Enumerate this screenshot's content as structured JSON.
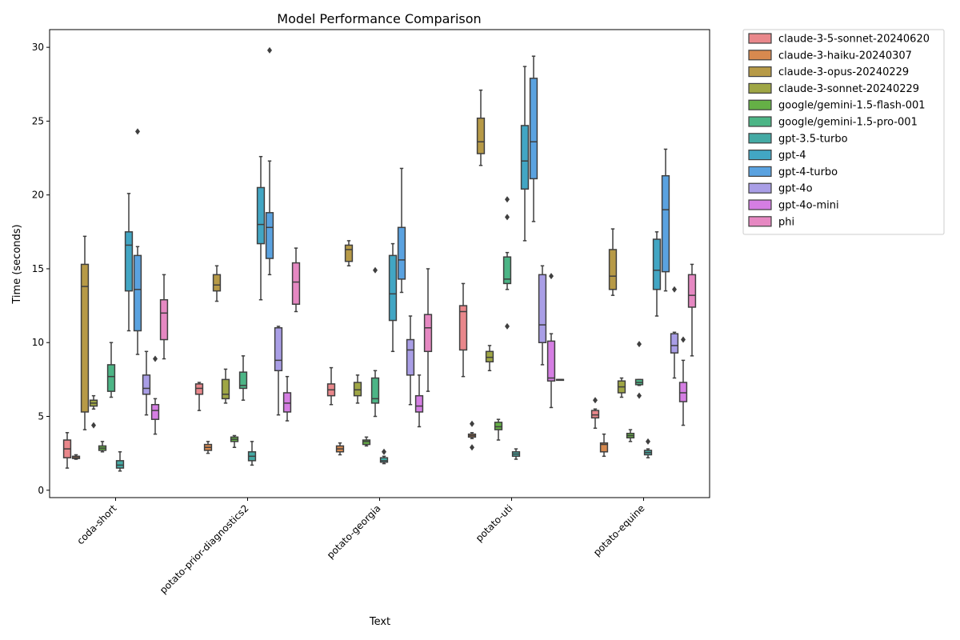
{
  "chart_data": {
    "type": "box",
    "title": "Model Performance Comparison",
    "xlabel": "Text",
    "ylabel": "Time (seconds)",
    "ylim": [
      -0.5,
      31.2
    ],
    "yticks": [
      0,
      5,
      10,
      15,
      20,
      25,
      30
    ],
    "grid": false,
    "legend_position": "outside-right",
    "categories": [
      "coda-short",
      "potato-prior-diagnostics2",
      "potato-georgia",
      "potato-uti",
      "potato-equine"
    ],
    "series": [
      {
        "name": "claude-3-5-sonnet-20240620",
        "color": "#e9878b",
        "boxes": [
          {
            "lo": 1.5,
            "q1": 2.2,
            "med": 2.8,
            "q3": 3.4,
            "hi": 3.9,
            "out": []
          },
          {
            "lo": 5.4,
            "q1": 6.5,
            "med": 6.9,
            "q3": 7.2,
            "hi": 7.3,
            "out": []
          },
          {
            "lo": 5.8,
            "q1": 6.4,
            "med": 6.8,
            "q3": 7.2,
            "hi": 8.3,
            "out": []
          },
          {
            "lo": 7.7,
            "q1": 9.5,
            "med": 12.1,
            "q3": 12.5,
            "hi": 14.0,
            "out": []
          },
          {
            "lo": 4.2,
            "q1": 4.9,
            "med": 5.1,
            "q3": 5.4,
            "hi": 5.5,
            "out": [
              6.1
            ]
          }
        ]
      },
      {
        "name": "claude-3-haiku-20240307",
        "color": "#d7894f",
        "boxes": [
          {
            "lo": 2.1,
            "q1": 2.15,
            "med": 2.2,
            "q3": 2.3,
            "hi": 2.4,
            "out": []
          },
          {
            "lo": 2.5,
            "q1": 2.7,
            "med": 2.9,
            "q3": 3.1,
            "hi": 3.3,
            "out": []
          },
          {
            "lo": 2.4,
            "q1": 2.6,
            "med": 2.8,
            "q3": 3.0,
            "hi": 3.2,
            "out": []
          },
          {
            "lo": 3.5,
            "q1": 3.6,
            "med": 3.7,
            "q3": 3.8,
            "hi": 3.9,
            "out": [
              4.5,
              2.9
            ]
          },
          {
            "lo": 2.3,
            "q1": 2.6,
            "med": 3.1,
            "q3": 3.2,
            "hi": 3.8,
            "out": []
          }
        ]
      },
      {
        "name": "claude-3-opus-20240229",
        "color": "#b79a47",
        "boxes": [
          {
            "lo": 4.1,
            "q1": 5.3,
            "med": 13.8,
            "q3": 15.3,
            "hi": 17.2,
            "out": []
          },
          {
            "lo": 12.8,
            "q1": 13.5,
            "med": 13.9,
            "q3": 14.6,
            "hi": 15.2,
            "out": []
          },
          {
            "lo": 15.2,
            "q1": 15.5,
            "med": 16.3,
            "q3": 16.6,
            "hi": 16.9,
            "out": []
          },
          {
            "lo": 22.0,
            "q1": 22.8,
            "med": 23.6,
            "q3": 25.2,
            "hi": 27.1,
            "out": []
          },
          {
            "lo": 13.2,
            "q1": 13.6,
            "med": 14.5,
            "q3": 16.3,
            "hi": 17.7,
            "out": []
          }
        ]
      },
      {
        "name": "claude-3-sonnet-20240229",
        "color": "#9fa645",
        "boxes": [
          {
            "lo": 5.5,
            "q1": 5.7,
            "med": 5.9,
            "q3": 6.1,
            "hi": 6.4,
            "out": [
              4.4
            ]
          },
          {
            "lo": 5.9,
            "q1": 6.2,
            "med": 6.5,
            "q3": 7.5,
            "hi": 8.2,
            "out": []
          },
          {
            "lo": 5.9,
            "q1": 6.4,
            "med": 6.8,
            "q3": 7.3,
            "hi": 7.8,
            "out": []
          },
          {
            "lo": 8.1,
            "q1": 8.7,
            "med": 9.0,
            "q3": 9.4,
            "hi": 9.8,
            "out": []
          },
          {
            "lo": 6.3,
            "q1": 6.6,
            "med": 7.0,
            "q3": 7.4,
            "hi": 7.6,
            "out": []
          }
        ]
      },
      {
        "name": "google/gemini-1.5-flash-001",
        "color": "#65b046",
        "boxes": [
          {
            "lo": 2.6,
            "q1": 2.7,
            "med": 2.85,
            "q3": 3.0,
            "hi": 3.3,
            "out": []
          },
          {
            "lo": 2.9,
            "q1": 3.3,
            "med": 3.45,
            "q3": 3.6,
            "hi": 3.7,
            "out": []
          },
          {
            "lo": 3.0,
            "q1": 3.1,
            "med": 3.3,
            "q3": 3.4,
            "hi": 3.6,
            "out": []
          },
          {
            "lo": 3.4,
            "q1": 4.1,
            "med": 4.3,
            "q3": 4.6,
            "hi": 4.8,
            "out": []
          },
          {
            "lo": 3.3,
            "q1": 3.55,
            "med": 3.7,
            "q3": 3.85,
            "hi": 4.1,
            "out": []
          }
        ]
      },
      {
        "name": "google/gemini-1.5-pro-001",
        "color": "#4cb586",
        "boxes": [
          {
            "lo": 6.3,
            "q1": 6.7,
            "med": 7.7,
            "q3": 8.5,
            "hi": 10.0,
            "out": []
          },
          {
            "lo": 6.1,
            "q1": 6.9,
            "med": 7.1,
            "q3": 8.0,
            "hi": 9.1,
            "out": []
          },
          {
            "lo": 5.0,
            "q1": 5.9,
            "med": 6.2,
            "q3": 7.6,
            "hi": 8.1,
            "out": [
              14.9
            ]
          },
          {
            "lo": 13.6,
            "q1": 14.0,
            "med": 14.3,
            "q3": 15.8,
            "hi": 16.1,
            "out": [
              19.7,
              18.5,
              11.1
            ]
          },
          {
            "lo": 7.1,
            "q1": 7.15,
            "med": 7.3,
            "q3": 7.5,
            "hi": 7.5,
            "out": [
              9.9,
              6.4
            ]
          }
        ]
      },
      {
        "name": "gpt-3.5-turbo",
        "color": "#44aaa4",
        "boxes": [
          {
            "lo": 1.3,
            "q1": 1.5,
            "med": 1.7,
            "q3": 2.0,
            "hi": 2.6,
            "out": []
          },
          {
            "lo": 1.7,
            "q1": 2.0,
            "med": 2.3,
            "q3": 2.6,
            "hi": 3.3,
            "out": []
          },
          {
            "lo": 1.8,
            "q1": 1.9,
            "med": 2.0,
            "q3": 2.2,
            "hi": 2.3,
            "out": [
              2.6
            ]
          },
          {
            "lo": 2.1,
            "q1": 2.3,
            "med": 2.45,
            "q3": 2.6,
            "hi": 2.8,
            "out": []
          },
          {
            "lo": 2.2,
            "q1": 2.4,
            "med": 2.55,
            "q3": 2.7,
            "hi": 2.8,
            "out": [
              3.3
            ]
          }
        ]
      },
      {
        "name": "gpt-4",
        "color": "#42a6c4",
        "boxes": [
          {
            "lo": 10.8,
            "q1": 13.5,
            "med": 16.6,
            "q3": 17.5,
            "hi": 20.1,
            "out": []
          },
          {
            "lo": 12.9,
            "q1": 16.7,
            "med": 18.0,
            "q3": 20.5,
            "hi": 22.6,
            "out": []
          },
          {
            "lo": 9.4,
            "q1": 11.5,
            "med": 13.3,
            "q3": 15.9,
            "hi": 16.7,
            "out": []
          },
          {
            "lo": 16.9,
            "q1": 20.4,
            "med": 22.3,
            "q3": 24.7,
            "hi": 28.7,
            "out": []
          },
          {
            "lo": 11.8,
            "q1": 13.6,
            "med": 14.9,
            "q3": 17.0,
            "hi": 17.5,
            "out": []
          }
        ]
      },
      {
        "name": "gpt-4-turbo",
        "color": "#5aa2e0",
        "boxes": [
          {
            "lo": 9.2,
            "q1": 10.8,
            "med": 13.6,
            "q3": 15.9,
            "hi": 16.5,
            "out": [
              24.3
            ]
          },
          {
            "lo": 14.6,
            "q1": 15.7,
            "med": 17.8,
            "q3": 18.8,
            "hi": 22.3,
            "out": [
              29.8
            ]
          },
          {
            "lo": 13.4,
            "q1": 14.3,
            "med": 15.6,
            "q3": 17.8,
            "hi": 21.8,
            "out": []
          },
          {
            "lo": 18.2,
            "q1": 21.1,
            "med": 23.6,
            "q3": 27.9,
            "hi": 29.4,
            "out": []
          },
          {
            "lo": 13.5,
            "q1": 14.8,
            "med": 19.0,
            "q3": 21.3,
            "hi": 23.1,
            "out": []
          }
        ]
      },
      {
        "name": "gpt-4o",
        "color": "#a99ee6",
        "boxes": [
          {
            "lo": 5.1,
            "q1": 6.5,
            "med": 6.9,
            "q3": 7.8,
            "hi": 9.4,
            "out": []
          },
          {
            "lo": 5.1,
            "q1": 8.1,
            "med": 8.8,
            "q3": 11.0,
            "hi": 11.1,
            "out": []
          },
          {
            "lo": 5.8,
            "q1": 7.8,
            "med": 9.5,
            "q3": 10.2,
            "hi": 11.8,
            "out": []
          },
          {
            "lo": 8.5,
            "q1": 10.0,
            "med": 11.2,
            "q3": 14.6,
            "hi": 15.2,
            "out": []
          },
          {
            "lo": 7.6,
            "q1": 9.3,
            "med": 9.8,
            "q3": 10.6,
            "hi": 10.7,
            "out": [
              13.6
            ]
          }
        ]
      },
      {
        "name": "gpt-4o-mini",
        "color": "#d57ee3",
        "boxes": [
          {
            "lo": 3.8,
            "q1": 4.8,
            "med": 5.4,
            "q3": 5.8,
            "hi": 6.2,
            "out": [
              8.9
            ]
          },
          {
            "lo": 4.7,
            "q1": 5.3,
            "med": 5.9,
            "q3": 6.6,
            "hi": 7.7,
            "out": []
          },
          {
            "lo": 4.3,
            "q1": 5.3,
            "med": 5.7,
            "q3": 6.4,
            "hi": 7.8,
            "out": []
          },
          {
            "lo": 5.6,
            "q1": 7.4,
            "med": 7.6,
            "q3": 10.1,
            "hi": 10.6,
            "out": [
              14.5
            ]
          },
          {
            "lo": 4.4,
            "q1": 6.0,
            "med": 6.6,
            "q3": 7.3,
            "hi": 8.8,
            "out": [
              10.2
            ]
          }
        ]
      },
      {
        "name": "phi",
        "color": "#e688c2",
        "boxes": [
          {
            "lo": 8.9,
            "q1": 10.2,
            "med": 12.0,
            "q3": 12.9,
            "hi": 14.6,
            "out": []
          },
          {
            "lo": 12.1,
            "q1": 12.6,
            "med": 14.1,
            "q3": 15.4,
            "hi": 16.4,
            "out": []
          },
          {
            "lo": 6.7,
            "q1": 9.4,
            "med": 11.0,
            "q3": 11.9,
            "hi": 15.0,
            "out": []
          },
          {
            "lo": 7.5,
            "q1": 7.5,
            "med": 7.5,
            "q3": 7.5,
            "hi": 7.5,
            "out": []
          },
          {
            "lo": 9.1,
            "q1": 12.4,
            "med": 13.2,
            "q3": 14.6,
            "hi": 15.3,
            "out": []
          }
        ]
      }
    ]
  }
}
